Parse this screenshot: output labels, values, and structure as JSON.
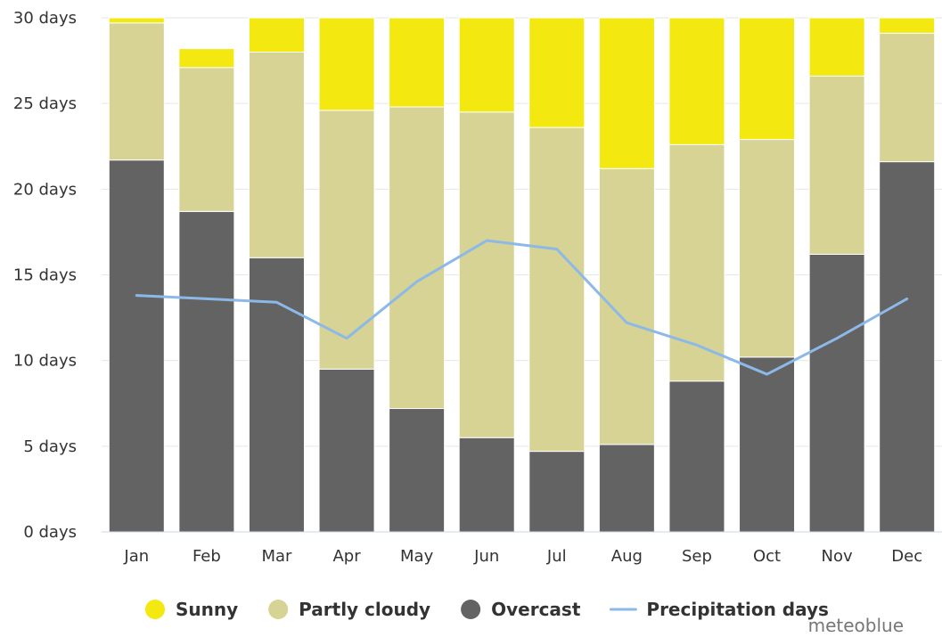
{
  "chart_data": {
    "type": "bar",
    "stacked": true,
    "categories": [
      "Jan",
      "Feb",
      "Mar",
      "Apr",
      "May",
      "Jun",
      "Jul",
      "Aug",
      "Sep",
      "Oct",
      "Nov",
      "Dec"
    ],
    "y_unit": "days",
    "ylim": [
      0,
      30
    ],
    "yticks": [
      0,
      5,
      10,
      15,
      20,
      25,
      30
    ],
    "ytick_labels": [
      "0 days",
      "5 days",
      "10 days",
      "15 days",
      "20 days",
      "25 days",
      "30 days"
    ],
    "grid": true,
    "legend_position": "bottom",
    "series": [
      {
        "name": "Overcast",
        "type": "bar",
        "color": "#636363",
        "values": [
          21.7,
          18.7,
          16.0,
          9.5,
          7.2,
          5.5,
          4.7,
          5.1,
          8.8,
          10.2,
          16.2,
          21.6
        ]
      },
      {
        "name": "Partly cloudy",
        "type": "bar",
        "color": "#d6d394",
        "values": [
          8.0,
          8.4,
          12.0,
          15.1,
          17.6,
          19.0,
          18.9,
          16.1,
          13.8,
          12.7,
          10.4,
          7.5
        ]
      },
      {
        "name": "Sunny",
        "type": "bar",
        "color": "#f3e80f",
        "values": [
          1.3,
          1.1,
          3.0,
          5.4,
          6.2,
          5.5,
          7.4,
          9.8,
          7.4,
          8.1,
          4.4,
          2.4
        ]
      },
      {
        "name": "Precipitation days",
        "type": "line",
        "color": "#8cb9e8",
        "values": [
          13.8,
          13.6,
          13.4,
          11.3,
          14.6,
          17.0,
          16.5,
          12.2,
          10.9,
          9.2,
          11.3,
          13.6
        ]
      }
    ],
    "legend_order": [
      "Sunny",
      "Partly cloudy",
      "Overcast",
      "Precipitation days"
    ],
    "credit": "meteoblue"
  },
  "colors": {
    "grid": "#e6e6e6",
    "axis": "#ccd6eb",
    "text": "#333333"
  }
}
